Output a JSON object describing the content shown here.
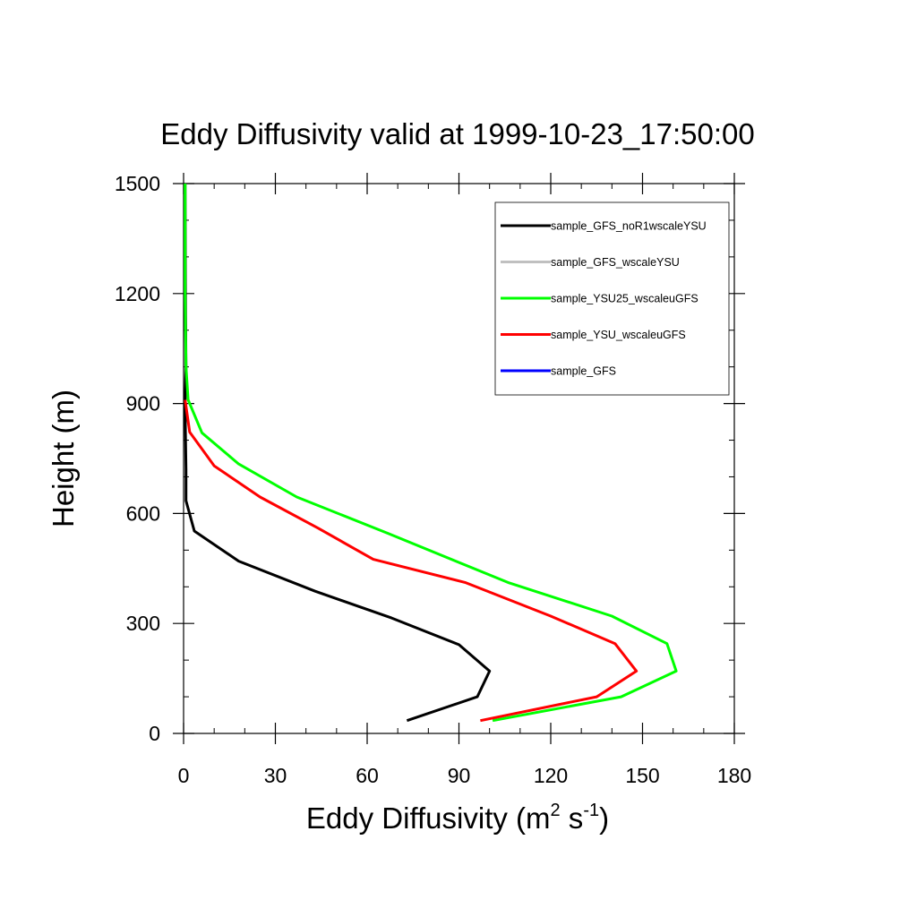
{
  "chart_data": {
    "type": "line",
    "title": "Eddy Diffusivity valid at 1999-10-23_17:50:00",
    "xlabel": "Eddy Diffusivity (m",
    "xlabel_sup1": "2",
    "xlabel_mid": " s",
    "xlabel_sup2": "-1",
    "xlabel_end": ")",
    "ylabel": "Height (m)",
    "xlim": [
      0,
      180
    ],
    "ylim": [
      0,
      1500
    ],
    "x_ticks": [
      0,
      30,
      60,
      90,
      120,
      150,
      180
    ],
    "y_ticks": [
      0,
      300,
      600,
      900,
      1200,
      1500
    ],
    "x_minor_step": 10,
    "y_minor_step": 100,
    "legend_position": "top-right",
    "grid": false,
    "series": [
      {
        "name": "sample_GFS_noR1wscaleYSU",
        "color": "#000000",
        "points": [
          [
            73,
            35
          ],
          [
            96,
            100
          ],
          [
            100,
            170
          ],
          [
            90,
            242
          ],
          [
            68,
            315
          ],
          [
            43,
            388
          ],
          [
            18,
            470
          ],
          [
            3.5,
            552
          ],
          [
            0.8,
            635
          ],
          [
            0.8,
            720
          ],
          [
            0.6,
            820
          ],
          [
            0.5,
            905
          ],
          [
            0.8,
            1000
          ],
          [
            0.6,
            1200
          ],
          [
            0.5,
            1500
          ]
        ]
      },
      {
        "name": "sample_GFS_wscaleYSU",
        "color": "#c0c0c0",
        "points": []
      },
      {
        "name": "sample_YSU25_wscaleuGFS",
        "color": "#00ff00",
        "points": [
          [
            101,
            35
          ],
          [
            143,
            100
          ],
          [
            161,
            170
          ],
          [
            158,
            245
          ],
          [
            140,
            320
          ],
          [
            106,
            412
          ],
          [
            67,
            545
          ],
          [
            37,
            645
          ],
          [
            18,
            735
          ],
          [
            6,
            820
          ],
          [
            1.5,
            910
          ],
          [
            0.8,
            1000
          ],
          [
            0.5,
            1200
          ],
          [
            0.5,
            1500
          ]
        ]
      },
      {
        "name": "sample_YSU_wscaleuGFS",
        "color": "#ff0000",
        "points": [
          [
            97,
            35
          ],
          [
            135,
            100
          ],
          [
            148,
            170
          ],
          [
            141,
            245
          ],
          [
            120,
            320
          ],
          [
            92,
            412
          ],
          [
            62,
            475
          ],
          [
            44,
            560
          ],
          [
            25,
            645
          ],
          [
            10,
            730
          ],
          [
            2,
            822
          ],
          [
            0.5,
            910
          ]
        ]
      },
      {
        "name": "sample_GFS",
        "color": "#0000ff",
        "points": []
      }
    ]
  }
}
